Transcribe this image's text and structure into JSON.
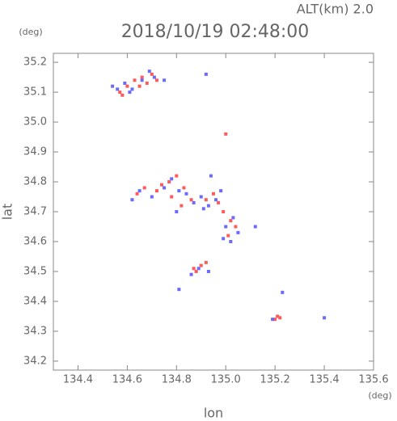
{
  "chart_data": {
    "type": "scatter",
    "title": "2018/10/19 02:48:00",
    "subtitle": "ALT(km) 2.0",
    "y_unit": "(deg)",
    "x_unit": "(deg)",
    "x_label": "lon",
    "y_label": "lat",
    "xlim": [
      134.3,
      135.6
    ],
    "ylim": [
      34.17,
      35.23
    ],
    "xticks": [
      134.4,
      134.6,
      134.8,
      {
        "value": 135,
        "label": "135.0"
      },
      135.2,
      135.4,
      135.6
    ],
    "yticks": [
      34.2,
      34.3,
      34.4,
      34.5,
      34.6,
      34.7,
      34.8,
      34.9,
      {
        "value": 35,
        "label": "35.0"
      },
      35.1,
      35.2
    ],
    "series": [
      {
        "color": "#ff5a5a",
        "x": [
          134.57,
          134.6,
          134.63,
          134.66,
          134.68,
          134.7,
          134.72,
          134.58,
          134.65,
          134.64,
          134.67,
          134.72,
          134.74,
          134.77,
          134.8,
          134.83,
          134.86,
          134.78,
          134.82,
          134.92,
          134.95,
          134.97,
          134.99,
          135.02,
          135.04,
          135.01,
          134.88,
          134.9,
          134.92,
          134.87,
          135.21,
          135.22,
          135.2,
          135.0
        ],
        "values": [
          35.1,
          35.12,
          35.14,
          35.15,
          35.13,
          35.16,
          35.14,
          35.09,
          35.12,
          34.76,
          34.78,
          34.77,
          34.79,
          34.8,
          34.82,
          34.78,
          34.74,
          34.75,
          34.72,
          34.74,
          34.76,
          34.73,
          34.7,
          34.67,
          34.65,
          34.62,
          34.5,
          34.52,
          34.53,
          34.51,
          34.35,
          34.345,
          34.34,
          34.96
        ]
      },
      {
        "color": "#6a6aff",
        "x": [
          134.54,
          134.56,
          134.59,
          134.62,
          134.66,
          134.69,
          134.71,
          134.75,
          134.61,
          134.62,
          134.65,
          134.7,
          134.75,
          134.78,
          134.81,
          134.84,
          134.87,
          134.8,
          134.9,
          134.93,
          134.96,
          134.98,
          134.91,
          135.0,
          135.03,
          135.05,
          134.99,
          135.02,
          134.86,
          134.89,
          134.93,
          134.81,
          135.19,
          135.4,
          135.23,
          135.12,
          134.94,
          134.92
        ],
        "values": [
          35.12,
          35.11,
          35.13,
          35.11,
          35.14,
          35.17,
          35.15,
          35.14,
          35.1,
          34.74,
          34.77,
          34.75,
          34.78,
          34.81,
          34.77,
          34.76,
          34.73,
          34.7,
          34.75,
          34.72,
          34.74,
          34.77,
          34.71,
          34.65,
          34.68,
          34.63,
          34.61,
          34.6,
          34.49,
          34.51,
          34.5,
          34.44,
          34.34,
          34.345,
          34.43,
          34.65,
          34.82,
          35.16
        ]
      }
    ]
  }
}
